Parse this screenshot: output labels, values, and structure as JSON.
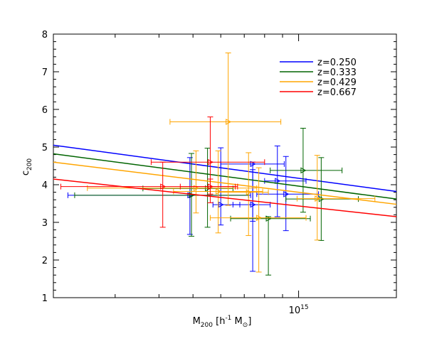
{
  "chart_data": {
    "type": "scatter",
    "title": "",
    "xlabel": {
      "main": "M",
      "sub": "200",
      "unit_pre": " [h",
      "unit_sup": "-1",
      "unit_post": " M",
      "unit_sub": "⊙",
      "unit_close": "]"
    },
    "ylabel": {
      "main": "c",
      "sub": "200"
    },
    "xscale": "log",
    "xlim": [
      200000000000000.0,
      1900000000000000.0
    ],
    "ylim": [
      1,
      8
    ],
    "xticks": [
      {
        "value": 1000000000000000.0,
        "base": "10",
        "exp": "15"
      }
    ],
    "yticks": [
      1,
      2,
      3,
      4,
      5,
      6,
      7,
      8
    ],
    "legend_position": "top-right",
    "series": [
      {
        "name": "z=0.250",
        "color": "#0000ff",
        "fit_line": {
          "x": [
            200000000000000.0,
            1900000000000000.0
          ],
          "y": [
            5.05,
            3.82
          ]
        },
        "points": [
          {
            "x": 490000000000000.0,
            "y": 3.72,
            "xerr": [
              220000000000000.0,
              730000000000000.0
            ],
            "yerr": [
              2.68,
              4.72
            ]
          },
          {
            "x": 600000000000000.0,
            "y": 3.47,
            "xerr": [
              570000000000000.0,
              680000000000000.0
            ],
            "yerr": [
              2.93,
              4.98
            ]
          },
          {
            "x": 740000000000000.0,
            "y": 3.47,
            "xerr": [
              650000000000000.0,
              830000000000000.0
            ],
            "yerr": [
              1.7,
              4.4
            ]
          },
          {
            "x": 740000000000000.0,
            "y": 4.55,
            "xerr": [
              600000000000000.0,
              910000000000000.0
            ],
            "yerr": [
              3.03,
              4.6
            ]
          },
          {
            "x": 870000000000000.0,
            "y": 4.1,
            "xerr": [
              800000000000000.0,
              1050000000000000.0
            ],
            "yerr": [
              3.15,
              5.03
            ]
          },
          {
            "x": 920000000000000.0,
            "y": 3.75,
            "xerr": [
              760000000000000.0,
              1140000000000000.0
            ],
            "yerr": [
              2.78,
              4.75
            ]
          }
        ]
      },
      {
        "name": "z=0.333",
        "color": "#006400",
        "fit_line": {
          "x": [
            200000000000000.0,
            1900000000000000.0
          ],
          "y": [
            4.82,
            3.62
          ]
        },
        "points": [
          {
            "x": 495000000000000.0,
            "y": 3.72,
            "xerr": [
              230000000000000.0,
              720000000000000.0
            ],
            "yerr": [
              2.63,
              4.83
            ]
          },
          {
            "x": 550000000000000.0,
            "y": 3.9,
            "xerr": [
              360000000000000.0,
              650000000000000.0
            ],
            "yerr": [
              2.87,
              4.97
            ]
          },
          {
            "x": 820000000000000.0,
            "y": 3.1,
            "xerr": [
              640000000000000.0,
              1080000000000000.0
            ],
            "yerr": [
              1.6,
              3.15
            ]
          },
          {
            "x": 1030000000000000.0,
            "y": 4.38,
            "xerr": [
              830000000000000.0,
              1330000000000000.0
            ],
            "yerr": [
              3.27,
              5.5
            ]
          },
          {
            "x": 1160000000000000.0,
            "y": 3.62,
            "xerr": [
              920000000000000.0,
              1480000000000000.0
            ],
            "yerr": [
              2.52,
              4.72
            ]
          }
        ]
      },
      {
        "name": "z=0.429",
        "color": "#ffa500",
        "fit_line": {
          "x": [
            200000000000000.0,
            1900000000000000.0
          ],
          "y": [
            4.6,
            3.48
          ]
        },
        "points": [
          {
            "x": 630000000000000.0,
            "y": 5.67,
            "xerr": [
              430000000000000.0,
              890000000000000.0
            ],
            "yerr": [
              3.45,
              7.5
            ]
          },
          {
            "x": 510000000000000.0,
            "y": 3.91,
            "xerr": [
              250000000000000.0,
              760000000000000.0
            ],
            "yerr": [
              3.25,
              4.9
            ]
          },
          {
            "x": 590000000000000.0,
            "y": 3.82,
            "xerr": [
              440000000000000.0,
              790000000000000.0
            ],
            "yerr": [
              2.72,
              4.9
            ]
          },
          {
            "x": 720000000000000.0,
            "y": 3.8,
            "xerr": [
              590000000000000.0,
              820000000000000.0
            ],
            "yerr": [
              2.65,
              4.85
            ]
          },
          {
            "x": 770000000000000.0,
            "y": 3.12,
            "xerr": [
              560000000000000.0,
              1050000000000000.0
            ],
            "yerr": [
              1.68,
              4.45
            ]
          },
          {
            "x": 1130000000000000.0,
            "y": 3.63,
            "xerr": [
              990000000000000.0,
              1650000000000000.0
            ],
            "yerr": [
              2.53,
              4.78
            ]
          }
        ]
      },
      {
        "name": "z=0.667",
        "color": "#ff0000",
        "fit_line": {
          "x": [
            200000000000000.0,
            1900000000000000.0
          ],
          "y": [
            4.15,
            3.15
          ]
        },
        "points": [
          {
            "x": 410000000000000.0,
            "y": 3.95,
            "xerr": [
              210000000000000.0,
              660000000000000.0
            ],
            "yerr": [
              2.87,
              4.6
            ]
          },
          {
            "x": 560000000000000.0,
            "y": 4.6,
            "xerr": [
              380000000000000.0,
              800000000000000.0
            ],
            "yerr": [
              3.52,
              5.8
            ]
          },
          {
            "x": 560000000000000.0,
            "y": 3.95,
            "xerr": [
              460000000000000.0,
              670000000000000.0
            ],
            "yerr": [
              3.75,
              4.15
            ]
          }
        ]
      }
    ]
  }
}
